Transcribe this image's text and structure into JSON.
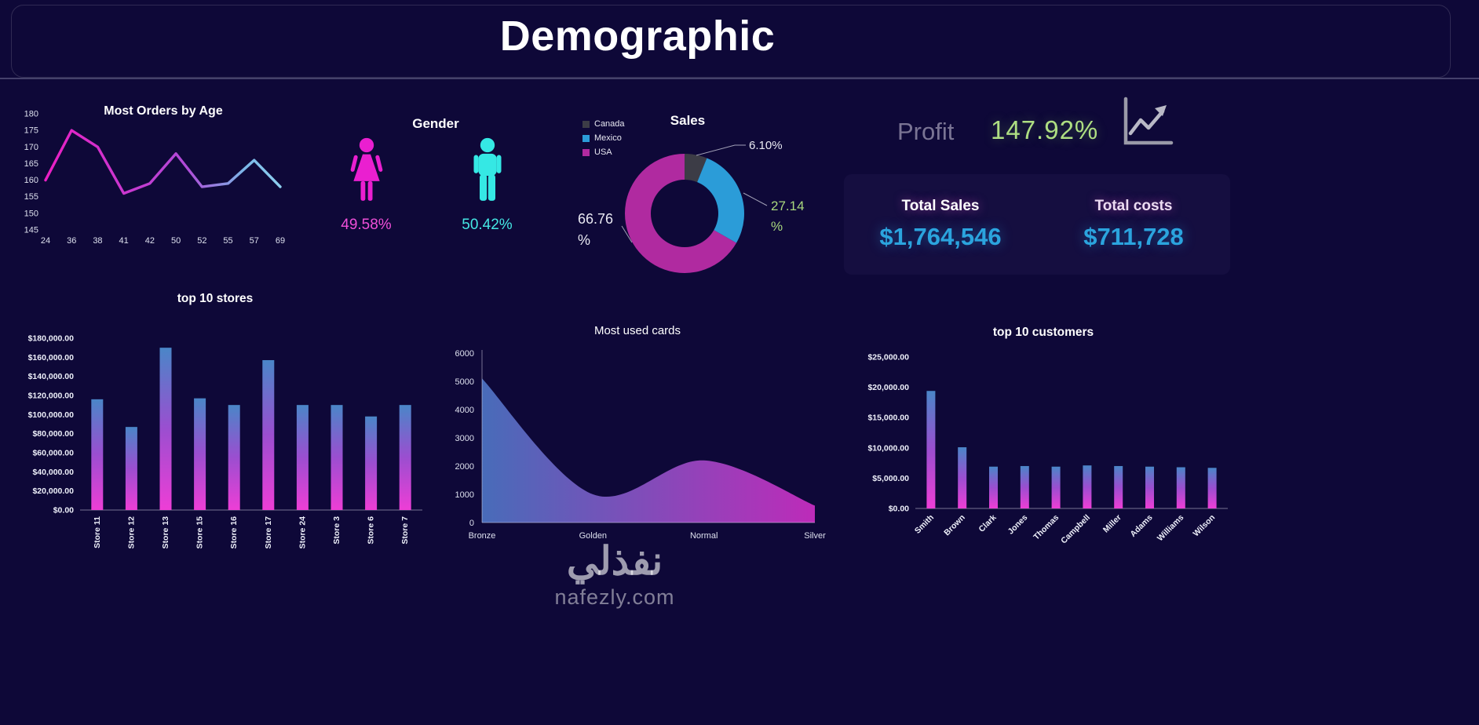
{
  "page": {
    "title": "Demographic"
  },
  "colors": {
    "background": "#0e0838",
    "magenta": "#ea1fd0",
    "cyan": "#35e8e4",
    "blue": "#2b9cd8",
    "green": "#a9d87e",
    "bar_gradient_top": "#4a86c8",
    "bar_gradient_bottom": "#ee3ed6",
    "value_blue": "#2ba4de"
  },
  "gender": {
    "title": "Gender",
    "female_pct": "49.58%",
    "male_pct": "50.42%"
  },
  "profit": {
    "label": "Profit",
    "value": "147.92%"
  },
  "totals": {
    "sales_label": "Total Sales",
    "sales_value": "$1,764,546",
    "costs_label": "Total costs",
    "costs_value": "$711,728"
  },
  "watermark": {
    "arabic": "نفذلي",
    "latin": "nafezly.com"
  },
  "chart_data": [
    {
      "id": "orders_by_age",
      "type": "line",
      "title": "Most Orders by Age",
      "categories": [
        "24",
        "36",
        "38",
        "41",
        "42",
        "50",
        "52",
        "55",
        "57",
        "69"
      ],
      "values": [
        160,
        175,
        170,
        156,
        159,
        168,
        158,
        159,
        166,
        158
      ],
      "ylim": [
        145,
        180
      ],
      "yticks": [
        145,
        150,
        155,
        160,
        165,
        170,
        175,
        180
      ]
    },
    {
      "id": "sales",
      "type": "pie",
      "title": "Sales",
      "donut": true,
      "slices": [
        {
          "label": "Canada",
          "pct": 6.1,
          "display": "6.10%",
          "color": "#3c3c46"
        },
        {
          "label": "Mexico",
          "pct": 27.14,
          "display": "27.14 %",
          "color": "#2b9cd8"
        },
        {
          "label": "USA",
          "pct": 66.76,
          "display": "66.76 %",
          "color": "#b02aa0"
        }
      ]
    },
    {
      "id": "top_stores",
      "type": "bar",
      "title": "top 10 stores",
      "categories": [
        "Store 11",
        "Store 12",
        "Store 13",
        "Store 15",
        "Store 16",
        "Store 17",
        "Store 24",
        "Store 3",
        "Store 6",
        "Store 7"
      ],
      "values": [
        116000,
        87000,
        170000,
        117000,
        110000,
        157000,
        110000,
        110000,
        98000,
        110000
      ],
      "ylim": [
        0,
        180000
      ],
      "yticks": [
        0,
        20000,
        40000,
        60000,
        80000,
        100000,
        120000,
        140000,
        160000,
        180000
      ],
      "ytick_format": "usd"
    },
    {
      "id": "most_used_cards",
      "type": "area",
      "title": "Most used cards",
      "categories": [
        "Bronze",
        "Golden",
        "Normal",
        "Silver"
      ],
      "values": [
        5100,
        1000,
        2200,
        600
      ],
      "ylim": [
        0,
        6000
      ],
      "yticks": [
        0,
        1000,
        2000,
        3000,
        4000,
        5000,
        6000
      ]
    },
    {
      "id": "top_customers",
      "type": "bar",
      "title": "top 10 customers",
      "categories": [
        "Smith",
        "Brown",
        "Clark",
        "Jones",
        "Thomas",
        "Campbell",
        "Miller",
        "Adams",
        "Williams",
        "Wilson"
      ],
      "values": [
        19400,
        10100,
        6900,
        7000,
        6900,
        7100,
        7000,
        6900,
        6800,
        6700
      ],
      "ylim": [
        0,
        25000
      ],
      "yticks": [
        0,
        5000,
        10000,
        15000,
        20000,
        25000
      ],
      "ytick_format": "usd"
    }
  ]
}
